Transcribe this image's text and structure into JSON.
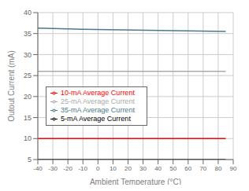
{
  "chart_data": {
    "type": "line",
    "title": "",
    "xlabel": "Ambient Temperature (°C)",
    "ylabel": "Outout Current (mA)",
    "xlim": [
      -40,
      90
    ],
    "ylim": [
      5,
      40
    ],
    "xticks": [
      -40,
      -30,
      -20,
      -10,
      0,
      10,
      20,
      30,
      40,
      50,
      60,
      70,
      80,
      90
    ],
    "yticks": [
      5,
      10,
      15,
      20,
      25,
      30,
      35,
      40
    ],
    "grid": true,
    "legend": "lower left",
    "series": [
      {
        "name": "5-mA Average Current",
        "color": "#000000",
        "x": [
          -40,
          85
        ],
        "values": [
          5.0,
          5.0
        ]
      },
      {
        "name": "10-mA Average Current",
        "color": "#ff0000",
        "x": [
          -40,
          85
        ],
        "values": [
          10.0,
          10.0
        ]
      },
      {
        "name": "25-mA Average Current",
        "color": "#aaaaaa",
        "x": [
          -40,
          85
        ],
        "values": [
          26.0,
          26.0
        ]
      },
      {
        "name": "35-mA Average Current",
        "color": "#4a7a8a",
        "x": [
          -40,
          -10,
          85
        ],
        "values": [
          36.3,
          36.0,
          35.5
        ]
      }
    ]
  }
}
